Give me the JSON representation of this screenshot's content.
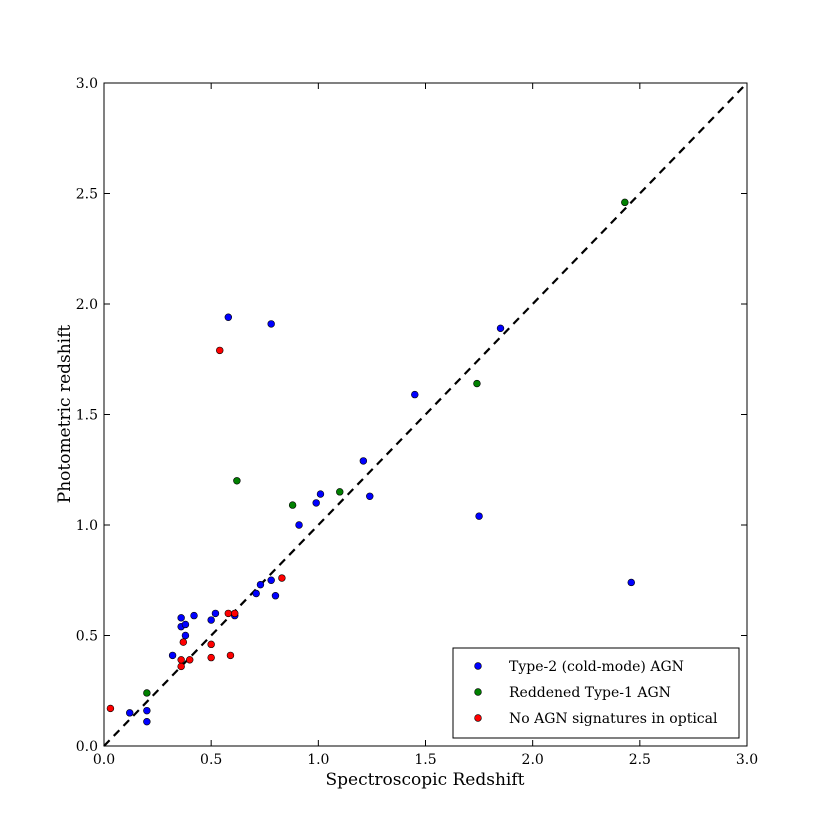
{
  "chart_data": {
    "type": "scatter",
    "title": "",
    "xlabel": "Spectroscopic Redshift",
    "ylabel": "Photometric redshift",
    "xlim": [
      0.0,
      3.0
    ],
    "ylim": [
      0.0,
      3.0
    ],
    "xticks": [
      "0.0",
      "0.5",
      "1.0",
      "1.5",
      "2.0",
      "2.5",
      "3.0"
    ],
    "yticks": [
      "0.0",
      "0.5",
      "1.0",
      "1.5",
      "2.0",
      "2.5",
      "3.0"
    ],
    "grid": false,
    "legend_position": "bottom-right",
    "reference_line": {
      "style": "dashed",
      "color": "#000000",
      "from": [
        0,
        0
      ],
      "to": [
        3,
        3
      ]
    },
    "series": [
      {
        "name": "Type-2 (cold-mode) AGN",
        "color": "#0000ff",
        "points": [
          [
            0.12,
            0.15
          ],
          [
            0.2,
            0.11
          ],
          [
            0.2,
            0.16
          ],
          [
            0.32,
            0.41
          ],
          [
            0.36,
            0.54
          ],
          [
            0.36,
            0.58
          ],
          [
            0.38,
            0.5
          ],
          [
            0.38,
            0.55
          ],
          [
            0.42,
            0.59
          ],
          [
            0.5,
            0.57
          ],
          [
            0.52,
            0.6
          ],
          [
            0.61,
            0.59
          ],
          [
            0.58,
            1.94
          ],
          [
            0.71,
            0.69
          ],
          [
            0.73,
            0.73
          ],
          [
            0.78,
            0.75
          ],
          [
            0.8,
            0.68
          ],
          [
            0.78,
            1.91
          ],
          [
            0.91,
            1.0
          ],
          [
            0.99,
            1.1
          ],
          [
            1.01,
            1.14
          ],
          [
            1.21,
            1.29
          ],
          [
            1.24,
            1.13
          ],
          [
            1.45,
            1.59
          ],
          [
            1.75,
            1.04
          ],
          [
            1.85,
            1.89
          ],
          [
            2.46,
            0.74
          ]
        ]
      },
      {
        "name": "Reddened Type-1 AGN",
        "color": "#008000",
        "points": [
          [
            0.2,
            0.24
          ],
          [
            0.62,
            1.2
          ],
          [
            0.88,
            1.09
          ],
          [
            1.1,
            1.15
          ],
          [
            1.74,
            1.64
          ],
          [
            2.43,
            2.46
          ]
        ]
      },
      {
        "name": "No AGN signatures in optical",
        "color": "#ff0000",
        "points": [
          [
            0.03,
            0.17
          ],
          [
            0.36,
            0.36
          ],
          [
            0.36,
            0.39
          ],
          [
            0.37,
            0.47
          ],
          [
            0.4,
            0.39
          ],
          [
            0.5,
            0.4
          ],
          [
            0.5,
            0.46
          ],
          [
            0.54,
            1.79
          ],
          [
            0.58,
            0.6
          ],
          [
            0.59,
            0.41
          ],
          [
            0.61,
            0.6
          ],
          [
            0.83,
            0.76
          ]
        ]
      }
    ]
  }
}
